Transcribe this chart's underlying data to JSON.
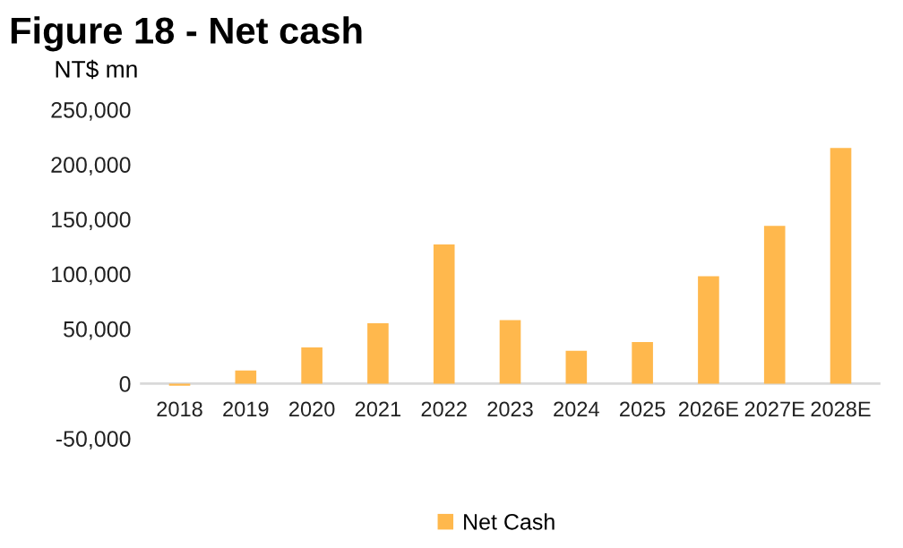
{
  "chart_data": {
    "type": "bar",
    "title": "Figure 18 - Net cash",
    "ylabel": "NT$ mn",
    "categories": [
      "2018",
      "2019",
      "2020",
      "2021",
      "2022",
      "2023",
      "2024",
      "2025",
      "2026E",
      "2027E",
      "2028E"
    ],
    "series": [
      {
        "name": "Net Cash",
        "color": "#ffb84d",
        "values": [
          -2000,
          12000,
          33000,
          55000,
          127000,
          58000,
          30000,
          38000,
          98000,
          144000,
          215000
        ]
      }
    ],
    "ylim": [
      -50000,
      250000
    ],
    "yticks": [
      {
        "value": -50000,
        "label": "-50,000"
      },
      {
        "value": 0,
        "label": "0"
      },
      {
        "value": 50000,
        "label": "50,000"
      },
      {
        "value": 100000,
        "label": "100,000"
      },
      {
        "value": 150000,
        "label": "150,000"
      },
      {
        "value": 200000,
        "label": "200,000"
      },
      {
        "value": 250000,
        "label": "250,000"
      }
    ],
    "grid": false,
    "legend": "bottom"
  }
}
